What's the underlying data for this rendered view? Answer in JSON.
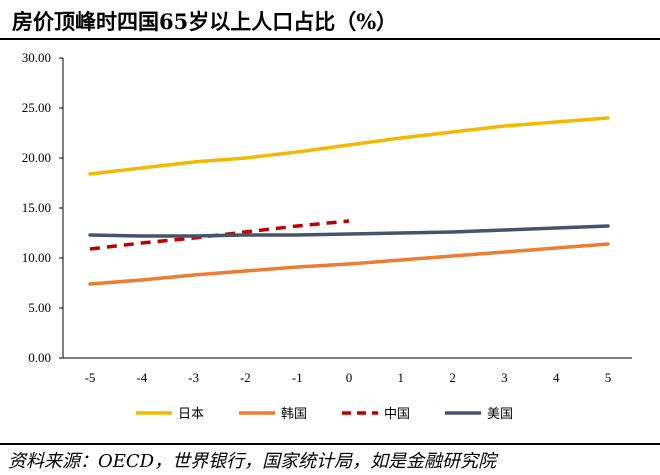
{
  "header": {
    "title": "房价顶峰时四国65岁以上人口占比（%）"
  },
  "footer": {
    "source": "资料来源：OECD，世界银行，国家统计局，如是金融研究院"
  },
  "chart_data": {
    "type": "line",
    "title": "房价顶峰时四国65岁以上人口占比（%）",
    "xlabel": "",
    "ylabel": "",
    "categories": [
      "-5",
      "-4",
      "-3",
      "-2",
      "-1",
      "0",
      "1",
      "2",
      "3",
      "4",
      "5"
    ],
    "ylim": [
      0,
      30
    ],
    "yticks": [
      "0.00",
      "5.00",
      "10.00",
      "15.00",
      "20.00",
      "25.00",
      "30.00"
    ],
    "grid": false,
    "legend_position": "bottom",
    "series": [
      {
        "name": "日本",
        "color": "#f5b800",
        "dash": "solid",
        "values": [
          18.4,
          19.0,
          19.6,
          20.0,
          20.6,
          21.3,
          22.0,
          22.6,
          23.2,
          23.6,
          24.0
        ]
      },
      {
        "name": "韩国",
        "color": "#ed7d31",
        "dash": "solid",
        "values": [
          7.4,
          7.8,
          8.3,
          8.7,
          9.1,
          9.4,
          9.8,
          10.2,
          10.6,
          11.0,
          11.4
        ]
      },
      {
        "name": "中国",
        "color": "#c00000",
        "dash": "dashed",
        "values": [
          10.9,
          11.5,
          12.0,
          12.6,
          13.2,
          13.7,
          null,
          null,
          null,
          null,
          null
        ]
      },
      {
        "name": "美国",
        "color": "#44546a",
        "dash": "solid",
        "values": [
          12.3,
          12.2,
          12.2,
          12.3,
          12.3,
          12.4,
          12.5,
          12.6,
          12.8,
          13.0,
          13.2
        ]
      }
    ]
  }
}
